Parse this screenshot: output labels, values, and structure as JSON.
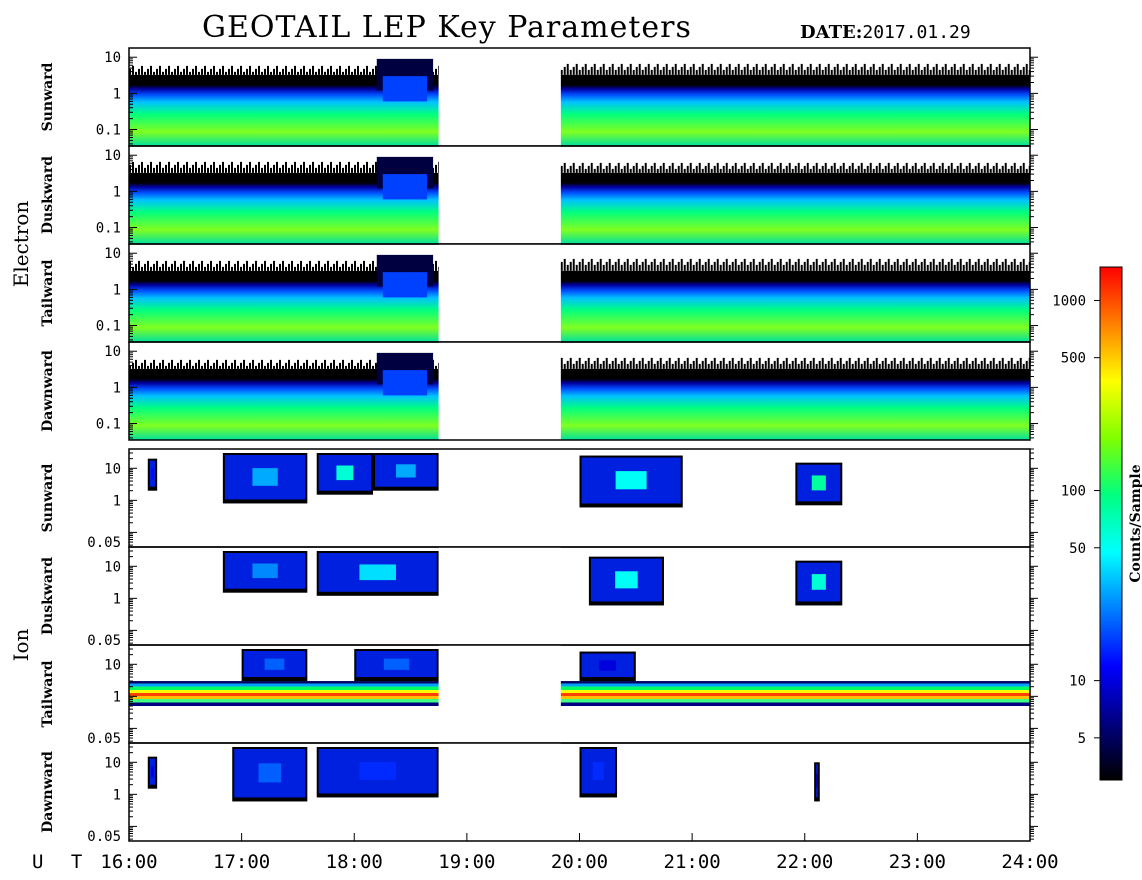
{
  "title": "GEOTAIL LEP Key Parameters",
  "date_label": "DATE:",
  "date_value": "2017.01.29",
  "chart_data": {
    "type": "heatmap",
    "x_axis": {
      "label": "U T",
      "range": [
        "16:00",
        "24:00"
      ],
      "ticks": [
        "16:00",
        "17:00",
        "18:00",
        "19:00",
        "20:00",
        "21:00",
        "22:00",
        "23:00",
        "24:00"
      ]
    },
    "colorbar": {
      "label": "Counts/Sample",
      "scale": "log",
      "range": [
        3,
        1500
      ],
      "ticks": [
        5,
        10,
        50,
        100,
        500,
        1000
      ],
      "colormap": [
        "#000000",
        "#000080",
        "#0000ff",
        "#0080ff",
        "#00ffff",
        "#00ff80",
        "#80ff00",
        "#ffff00",
        "#ff8000",
        "#ff0000"
      ]
    },
    "groups": [
      {
        "name": "Electron",
        "y_scale": "log",
        "y_ticks": [
          "10",
          "1",
          "0.1"
        ],
        "y_range": [
          0.035,
          18
        ],
        "data_gaps": [
          [
            "18:45",
            "19:50"
          ]
        ],
        "panels": [
          {
            "label": "Sunward",
            "flux_edge": 0.8
          },
          {
            "label": "Duskward",
            "flux_edge": 0.8
          },
          {
            "label": "Tailward",
            "flux_edge": 0.8
          },
          {
            "label": "Dawnward",
            "flux_edge": 0.8
          }
        ]
      },
      {
        "name": "Ion",
        "y_scale": "log",
        "y_ticks": [
          "10",
          "1",
          "0.05"
        ],
        "y_range": [
          0.035,
          40
        ],
        "data_gaps": [
          [
            "18:45",
            "19:50"
          ]
        ],
        "panels": [
          {
            "label": "Sunward",
            "patches": [
              {
                "start": "16:10",
                "end": "16:15",
                "ylow": 2,
                "yhigh": 20,
                "peak": 12
              },
              {
                "start": "16:50",
                "end": "17:35",
                "ylow": 0.8,
                "yhigh": 30,
                "peak": 30
              },
              {
                "start": "17:40",
                "end": "18:10",
                "ylow": 1.5,
                "yhigh": 30,
                "peak": 60
              },
              {
                "start": "18:10",
                "end": "18:45",
                "ylow": 2,
                "yhigh": 30,
                "peak": 30
              },
              {
                "start": "20:00",
                "end": "20:55",
                "ylow": 0.6,
                "yhigh": 25,
                "peak": 50
              },
              {
                "start": "21:55",
                "end": "22:20",
                "ylow": 0.7,
                "yhigh": 15,
                "peak": 80
              }
            ]
          },
          {
            "label": "Duskward",
            "patches": [
              {
                "start": "16:50",
                "end": "17:35",
                "ylow": 1.5,
                "yhigh": 30,
                "peak": 25
              },
              {
                "start": "17:40",
                "end": "18:45",
                "ylow": 1.2,
                "yhigh": 30,
                "peak": 40
              },
              {
                "start": "20:05",
                "end": "20:45",
                "ylow": 0.6,
                "yhigh": 20,
                "peak": 50
              },
              {
                "start": "21:55",
                "end": "22:20",
                "ylow": 0.6,
                "yhigh": 15,
                "peak": 60
              }
            ]
          },
          {
            "label": "Tailward",
            "band": {
              "ylow": 0.5,
              "yhigh": 3,
              "peak": 1000
            },
            "patches": [
              {
                "start": "17:00",
                "end": "17:35",
                "ylow": 3,
                "yhigh": 30,
                "peak": 20
              },
              {
                "start": "18:00",
                "end": "18:45",
                "ylow": 3,
                "yhigh": 30,
                "peak": 20
              },
              {
                "start": "20:00",
                "end": "20:30",
                "ylow": 3,
                "yhigh": 25,
                "peak": 10
              }
            ]
          },
          {
            "label": "Dawnward",
            "patches": [
              {
                "start": "16:10",
                "end": "16:15",
                "ylow": 1.5,
                "yhigh": 15,
                "peak": 10
              },
              {
                "start": "16:55",
                "end": "17:35",
                "ylow": 0.6,
                "yhigh": 30,
                "peak": 20
              },
              {
                "start": "17:40",
                "end": "18:45",
                "ylow": 0.8,
                "yhigh": 30,
                "peak": 15
              },
              {
                "start": "20:00",
                "end": "20:20",
                "ylow": 0.8,
                "yhigh": 30,
                "peak": 15
              },
              {
                "start": "22:05",
                "end": "22:08",
                "ylow": 0.6,
                "yhigh": 10,
                "peak": 8
              }
            ]
          }
        ]
      }
    ]
  }
}
